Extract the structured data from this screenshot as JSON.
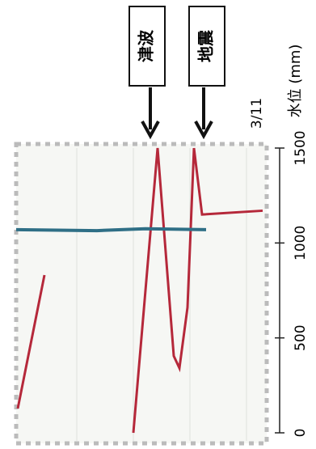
{
  "chart_data": {
    "type": "line",
    "annotations": [
      "津波",
      "地震"
    ],
    "date": "3/11",
    "y_label": "水位 (mm)",
    "xlim": [
      0,
      340
    ],
    "ylim": [
      0,
      1500
    ],
    "yticks": [
      0,
      500,
      1000,
      1500
    ],
    "series": [
      {
        "color": "#b5283a",
        "x": [
          22,
          55,
          75,
          165,
          195,
          215,
          222,
          232,
          240,
          250,
          325
        ],
        "values": [
          128,
          831,
          null,
          0,
          1500,
          405,
          341,
          660,
          1500,
          1150,
          1170
        ]
      },
      {
        "color": "#2f6f86",
        "x": [
          20,
          120,
          180,
          255
        ],
        "values": [
          1070,
          1065,
          1075,
          1070
        ]
      }
    ]
  }
}
